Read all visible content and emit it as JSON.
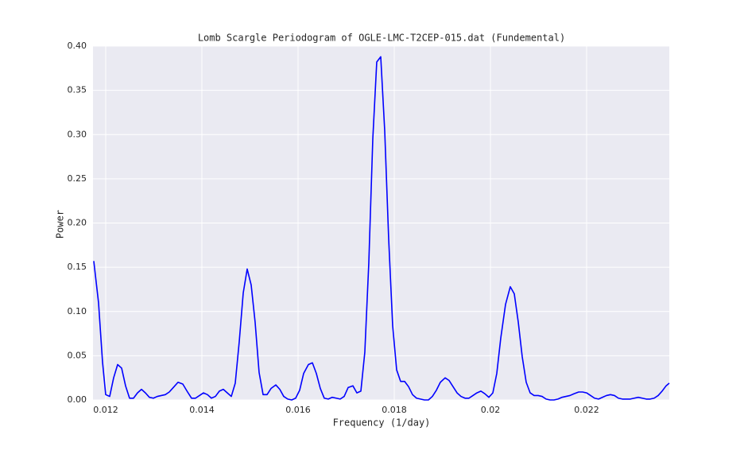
{
  "chart_data": {
    "type": "line",
    "title": "Lomb Scargle Periodogram of OGLE-LMC-T2CEP-015.dat (Fundemental)",
    "xlabel": "Frequency (1/day)",
    "ylabel": "Power",
    "color": "#0000ff",
    "grid": true,
    "xlim": [
      0.011736,
      0.023719
    ],
    "ylim": [
      0,
      0.4
    ],
    "xticks": [
      0.012,
      0.014,
      0.016,
      0.018,
      0.02,
      0.022
    ],
    "yticks": [
      {
        "value": 0,
        "label": "0.00"
      },
      {
        "value": 0.05,
        "label": "0.05"
      },
      {
        "value": 0.1,
        "label": "0.10"
      },
      {
        "value": 0.15,
        "label": "0.15"
      },
      {
        "value": 0.2,
        "label": "0.20"
      },
      {
        "value": 0.25,
        "label": "0.25"
      },
      {
        "value": 0.3,
        "label": "0.30"
      },
      {
        "value": 0.35,
        "label": "0.35"
      },
      {
        "value": 0.4,
        "label": "0.40"
      }
    ],
    "x": [
      0.011752,
      0.011851,
      0.011934,
      0.012,
      0.012083,
      0.012165,
      0.012248,
      0.012331,
      0.012413,
      0.012496,
      0.012579,
      0.012661,
      0.012744,
      0.012826,
      0.012909,
      0.012992,
      0.013074,
      0.013157,
      0.01324,
      0.013322,
      0.013405,
      0.013504,
      0.013603,
      0.013702,
      0.013785,
      0.013868,
      0.01395,
      0.014033,
      0.014116,
      0.014198,
      0.014281,
      0.014364,
      0.014446,
      0.014529,
      0.014612,
      0.014694,
      0.014777,
      0.01486,
      0.014942,
      0.015025,
      0.015107,
      0.01519,
      0.015273,
      0.015355,
      0.015438,
      0.015537,
      0.01562,
      0.015702,
      0.015785,
      0.015868,
      0.01595,
      0.016033,
      0.016116,
      0.016215,
      0.016298,
      0.01638,
      0.016463,
      0.016545,
      0.016628,
      0.016711,
      0.016793,
      0.016876,
      0.016959,
      0.017041,
      0.01714,
      0.017223,
      0.017306,
      0.017388,
      0.017471,
      0.017554,
      0.017636,
      0.017719,
      0.017802,
      0.017884,
      0.017967,
      0.01805,
      0.018132,
      0.018215,
      0.018298,
      0.01838,
      0.018463,
      0.018545,
      0.018628,
      0.018711,
      0.018793,
      0.018876,
      0.018959,
      0.019058,
      0.019141,
      0.019223,
      0.019306,
      0.019388,
      0.019471,
      0.019554,
      0.019636,
      0.019719,
      0.019802,
      0.019884,
      0.019967,
      0.02005,
      0.020132,
      0.020215,
      0.020314,
      0.020413,
      0.020496,
      0.020579,
      0.020661,
      0.020744,
      0.020826,
      0.020909,
      0.020992,
      0.021074,
      0.021157,
      0.02124,
      0.021322,
      0.021405,
      0.021488,
      0.02157,
      0.021653,
      0.021736,
      0.021835,
      0.021917,
      0.022,
      0.022083,
      0.022165,
      0.022248,
      0.022331,
      0.022413,
      0.022496,
      0.022579,
      0.022661,
      0.022744,
      0.022826,
      0.022909,
      0.022992,
      0.023074,
      0.023157,
      0.02324,
      0.023322,
      0.023405,
      0.023488,
      0.02357,
      0.023653,
      0.023719
    ],
    "values": [
      0.157,
      0.11,
      0.043,
      0.006,
      0.004,
      0.025,
      0.04,
      0.036,
      0.016,
      0.002,
      0.002,
      0.008,
      0.012,
      0.008,
      0.003,
      0.002,
      0.004,
      0.005,
      0.006,
      0.009,
      0.014,
      0.02,
      0.018,
      0.009,
      0.002,
      0.002,
      0.005,
      0.008,
      0.006,
      0.002,
      0.004,
      0.01,
      0.012,
      0.008,
      0.004,
      0.019,
      0.066,
      0.121,
      0.148,
      0.13,
      0.088,
      0.031,
      0.006,
      0.006,
      0.013,
      0.017,
      0.012,
      0.004,
      0.001,
      0,
      0.002,
      0.011,
      0.03,
      0.04,
      0.042,
      0.03,
      0.013,
      0.002,
      0.001,
      0.003,
      0.002,
      0.001,
      0.004,
      0.014,
      0.016,
      0.008,
      0.01,
      0.054,
      0.155,
      0.295,
      0.382,
      0.388,
      0.304,
      0.182,
      0.084,
      0.034,
      0.021,
      0.021,
      0.015,
      0.006,
      0.002,
      0.001,
      0,
      0,
      0.004,
      0.011,
      0.02,
      0.025,
      0.022,
      0.015,
      0.008,
      0.004,
      0.002,
      0.002,
      0.005,
      0.008,
      0.01,
      0.007,
      0.003,
      0.008,
      0.03,
      0.07,
      0.108,
      0.128,
      0.12,
      0.088,
      0.049,
      0.02,
      0.008,
      0.005,
      0.005,
      0.004,
      0.001,
      0,
      0,
      0.001,
      0.003,
      0.004,
      0.005,
      0.007,
      0.009,
      0.009,
      0.008,
      0.005,
      0.002,
      0.001,
      0.003,
      0.005,
      0.006,
      0.005,
      0.002,
      0.001,
      0.001,
      0.001,
      0.002,
      0.003,
      0.002,
      0.001,
      0.001,
      0.002,
      0.005,
      0.01,
      0.016,
      0.019
    ]
  }
}
